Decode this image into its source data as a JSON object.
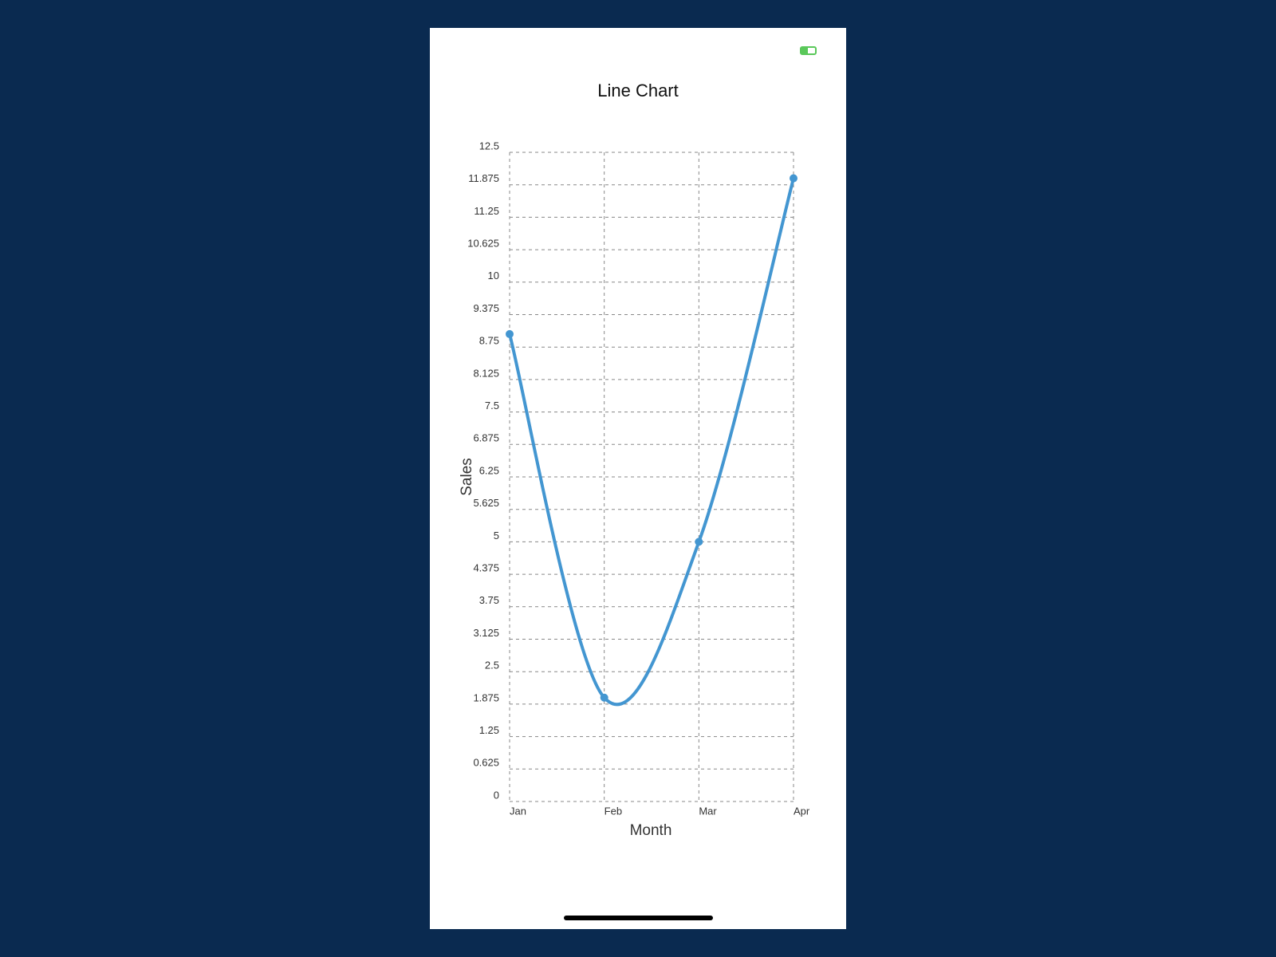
{
  "chart_data": {
    "type": "line",
    "title": "Line Chart",
    "x_label": "Month",
    "y_label": "Sales",
    "categories": [
      "Jan",
      "Feb",
      "Mar",
      "Apr"
    ],
    "series": [
      {
        "name": "Sales",
        "color": "#4396d1",
        "values": [
          9,
          2,
          5,
          12
        ]
      }
    ],
    "ylim": [
      0,
      12.5
    ],
    "yticks": [
      0,
      0.625,
      1.25,
      1.875,
      2.5,
      3.125,
      3.75,
      4.375,
      5,
      5.625,
      6.25,
      6.875,
      7.5,
      8.125,
      8.75,
      9.375,
      10,
      10.625,
      11.25,
      11.875,
      12.5
    ],
    "grid": true
  }
}
